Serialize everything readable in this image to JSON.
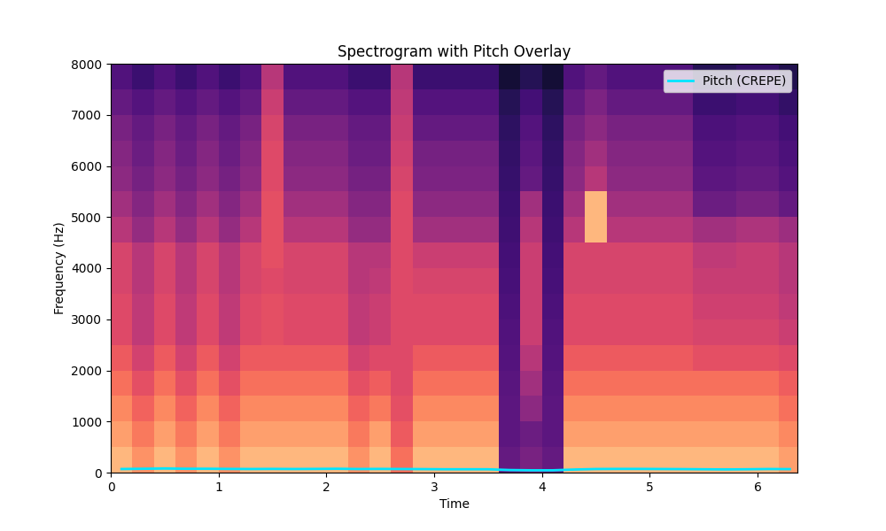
{
  "chart_data": {
    "type": "spectrogram",
    "title": "Spectrogram with Pitch Overlay",
    "x_label": "Time",
    "y_label": "Frequency (Hz)",
    "xlim": [
      0,
      6.37
    ],
    "ylim": [
      0,
      8000
    ],
    "xticks": [
      0,
      1,
      2,
      3,
      4,
      5,
      6
    ],
    "yticks": [
      0,
      1000,
      2000,
      3000,
      4000,
      5000,
      6000,
      7000,
      8000
    ],
    "legend": "upper right",
    "time_edges": [
      0.0,
      0.2,
      0.4,
      0.6,
      0.8,
      1.0,
      1.2,
      1.4,
      1.6,
      1.8,
      2.0,
      2.2,
      2.4,
      2.6,
      2.8,
      3.0,
      3.2,
      3.4,
      3.6,
      3.8,
      4.0,
      4.2,
      4.4,
      4.6,
      4.8,
      5.0,
      5.2,
      5.4,
      5.6,
      5.8,
      6.0,
      6.2,
      6.4
    ],
    "freq_edges": [
      0,
      500,
      1000,
      1500,
      2000,
      2500,
      3000,
      3500,
      4000,
      4500,
      5000,
      5500,
      6000,
      6500,
      7000,
      7500,
      8000
    ],
    "cell_range": [
      0,
      1
    ],
    "cells": [
      [
        0.85,
        0.77,
        0.85,
        0.77,
        0.85,
        0.77,
        0.85,
        0.85,
        0.85,
        0.85,
        0.85,
        0.77,
        0.85,
        0.7,
        0.85,
        0.85,
        0.85,
        0.85,
        0.3,
        0.35,
        0.3,
        0.85,
        0.85,
        0.85,
        0.85,
        0.85,
        0.85,
        0.85,
        0.85,
        0.85,
        0.85,
        0.8
      ],
      [
        0.8,
        0.72,
        0.8,
        0.72,
        0.8,
        0.72,
        0.8,
        0.8,
        0.8,
        0.8,
        0.8,
        0.72,
        0.8,
        0.65,
        0.8,
        0.8,
        0.8,
        0.8,
        0.28,
        0.32,
        0.28,
        0.8,
        0.8,
        0.8,
        0.8,
        0.8,
        0.8,
        0.8,
        0.8,
        0.8,
        0.8,
        0.75
      ],
      [
        0.75,
        0.67,
        0.75,
        0.67,
        0.75,
        0.67,
        0.75,
        0.75,
        0.75,
        0.75,
        0.75,
        0.67,
        0.72,
        0.62,
        0.75,
        0.75,
        0.75,
        0.75,
        0.28,
        0.4,
        0.28,
        0.75,
        0.75,
        0.75,
        0.75,
        0.75,
        0.75,
        0.75,
        0.75,
        0.75,
        0.75,
        0.7
      ],
      [
        0.7,
        0.62,
        0.7,
        0.62,
        0.7,
        0.62,
        0.7,
        0.7,
        0.7,
        0.7,
        0.7,
        0.62,
        0.66,
        0.6,
        0.7,
        0.7,
        0.7,
        0.7,
        0.27,
        0.45,
        0.27,
        0.7,
        0.7,
        0.7,
        0.7,
        0.7,
        0.7,
        0.7,
        0.7,
        0.7,
        0.7,
        0.66
      ],
      [
        0.65,
        0.57,
        0.65,
        0.57,
        0.65,
        0.57,
        0.65,
        0.65,
        0.65,
        0.65,
        0.65,
        0.57,
        0.6,
        0.6,
        0.65,
        0.65,
        0.65,
        0.65,
        0.26,
        0.5,
        0.26,
        0.65,
        0.65,
        0.65,
        0.65,
        0.65,
        0.65,
        0.62,
        0.62,
        0.62,
        0.62,
        0.6
      ],
      [
        0.6,
        0.52,
        0.6,
        0.52,
        0.6,
        0.52,
        0.6,
        0.62,
        0.6,
        0.6,
        0.6,
        0.52,
        0.55,
        0.6,
        0.6,
        0.6,
        0.6,
        0.6,
        0.25,
        0.55,
        0.25,
        0.6,
        0.6,
        0.6,
        0.6,
        0.6,
        0.6,
        0.58,
        0.58,
        0.58,
        0.58,
        0.55
      ],
      [
        0.6,
        0.52,
        0.6,
        0.52,
        0.6,
        0.52,
        0.6,
        0.62,
        0.6,
        0.6,
        0.6,
        0.52,
        0.55,
        0.6,
        0.6,
        0.6,
        0.6,
        0.6,
        0.24,
        0.55,
        0.24,
        0.6,
        0.6,
        0.6,
        0.6,
        0.6,
        0.6,
        0.56,
        0.56,
        0.56,
        0.56,
        0.52
      ],
      [
        0.58,
        0.5,
        0.58,
        0.5,
        0.58,
        0.5,
        0.58,
        0.6,
        0.58,
        0.58,
        0.58,
        0.5,
        0.52,
        0.6,
        0.58,
        0.58,
        0.58,
        0.58,
        0.23,
        0.55,
        0.23,
        0.58,
        0.58,
        0.58,
        0.58,
        0.58,
        0.58,
        0.54,
        0.54,
        0.54,
        0.54,
        0.5
      ],
      [
        0.58,
        0.5,
        0.58,
        0.5,
        0.58,
        0.5,
        0.58,
        0.62,
        0.58,
        0.58,
        0.58,
        0.5,
        0.5,
        0.6,
        0.55,
        0.55,
        0.55,
        0.55,
        0.22,
        0.55,
        0.22,
        0.58,
        0.58,
        0.58,
        0.58,
        0.58,
        0.58,
        0.52,
        0.52,
        0.54,
        0.54,
        0.5
      ],
      [
        0.5,
        0.42,
        0.5,
        0.42,
        0.5,
        0.42,
        0.5,
        0.62,
        0.5,
        0.5,
        0.5,
        0.42,
        0.42,
        0.6,
        0.45,
        0.45,
        0.45,
        0.45,
        0.21,
        0.5,
        0.21,
        0.5,
        0.85,
        0.5,
        0.5,
        0.5,
        0.5,
        0.45,
        0.45,
        0.48,
        0.48,
        0.44
      ],
      [
        0.45,
        0.38,
        0.45,
        0.38,
        0.45,
        0.38,
        0.45,
        0.62,
        0.45,
        0.45,
        0.45,
        0.38,
        0.38,
        0.6,
        0.4,
        0.4,
        0.4,
        0.4,
        0.2,
        0.45,
        0.2,
        0.45,
        0.85,
        0.45,
        0.45,
        0.45,
        0.45,
        0.32,
        0.32,
        0.35,
        0.35,
        0.3
      ],
      [
        0.4,
        0.34,
        0.4,
        0.34,
        0.4,
        0.34,
        0.4,
        0.6,
        0.4,
        0.4,
        0.4,
        0.34,
        0.34,
        0.58,
        0.36,
        0.36,
        0.36,
        0.36,
        0.19,
        0.3,
        0.19,
        0.4,
        0.5,
        0.4,
        0.4,
        0.4,
        0.4,
        0.28,
        0.28,
        0.3,
        0.3,
        0.26
      ],
      [
        0.38,
        0.32,
        0.38,
        0.32,
        0.38,
        0.32,
        0.38,
        0.6,
        0.38,
        0.38,
        0.38,
        0.32,
        0.32,
        0.56,
        0.34,
        0.34,
        0.34,
        0.34,
        0.18,
        0.28,
        0.18,
        0.38,
        0.45,
        0.38,
        0.38,
        0.38,
        0.38,
        0.26,
        0.26,
        0.28,
        0.28,
        0.24
      ],
      [
        0.35,
        0.3,
        0.35,
        0.3,
        0.35,
        0.3,
        0.35,
        0.58,
        0.35,
        0.35,
        0.35,
        0.3,
        0.3,
        0.54,
        0.3,
        0.3,
        0.3,
        0.3,
        0.17,
        0.26,
        0.17,
        0.35,
        0.4,
        0.35,
        0.35,
        0.35,
        0.35,
        0.24,
        0.24,
        0.26,
        0.26,
        0.22
      ],
      [
        0.3,
        0.26,
        0.3,
        0.26,
        0.3,
        0.26,
        0.3,
        0.55,
        0.3,
        0.3,
        0.3,
        0.26,
        0.26,
        0.52,
        0.26,
        0.26,
        0.26,
        0.26,
        0.15,
        0.22,
        0.15,
        0.3,
        0.36,
        0.3,
        0.3,
        0.3,
        0.3,
        0.2,
        0.2,
        0.22,
        0.22,
        0.18
      ],
      [
        0.25,
        0.2,
        0.25,
        0.2,
        0.25,
        0.2,
        0.25,
        0.5,
        0.25,
        0.25,
        0.25,
        0.2,
        0.2,
        0.5,
        0.2,
        0.2,
        0.2,
        0.2,
        0.1,
        0.15,
        0.1,
        0.25,
        0.3,
        0.25,
        0.25,
        0.25,
        0.25,
        0.15,
        0.15,
        0.18,
        0.18,
        0.14
      ]
    ],
    "series": [
      {
        "name": "Pitch (CREPE)",
        "color": "#00e5ff",
        "line_style": "solid",
        "x": [
          0.1,
          0.3,
          0.5,
          0.7,
          0.9,
          1.1,
          1.3,
          1.5,
          1.7,
          1.9,
          2.1,
          2.3,
          2.5,
          2.7,
          2.9,
          3.1,
          3.3,
          3.5,
          3.7,
          3.9,
          4.1,
          4.3,
          4.5,
          4.7,
          4.9,
          5.1,
          5.3,
          5.5,
          5.7,
          5.9,
          6.1,
          6.3
        ],
        "values": [
          70,
          75,
          80,
          75,
          75,
          72,
          70,
          72,
          70,
          72,
          75,
          70,
          72,
          70,
          68,
          65,
          65,
          65,
          50,
          45,
          45,
          60,
          70,
          72,
          72,
          70,
          68,
          65,
          62,
          65,
          70,
          68
        ]
      }
    ]
  }
}
